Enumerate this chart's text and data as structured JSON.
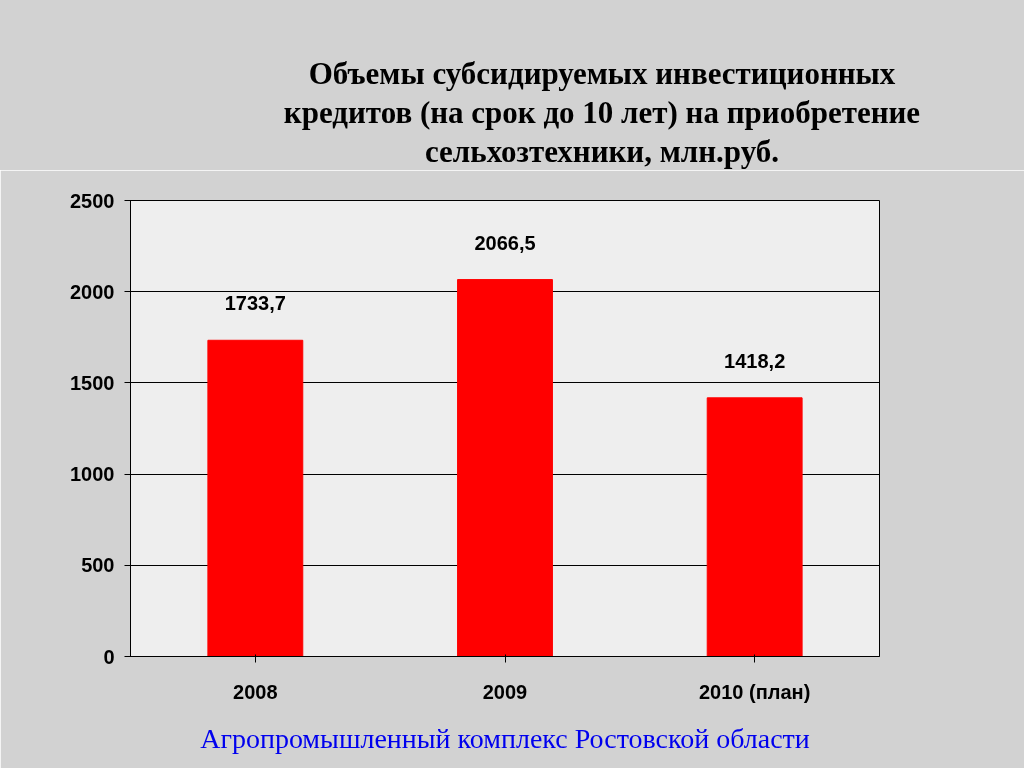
{
  "chart_data": {
    "type": "bar",
    "title": "Объемы субсидируемых инвестиционных\nкредитов (на срок до 10 лет) на приобретение\nсельхозтехники, млн.руб.",
    "categories": [
      "2008",
      "2009",
      "2010 (план)"
    ],
    "values": [
      1733.7,
      2066.5,
      1418.2
    ],
    "value_labels": [
      "1733,7",
      "2066,5",
      "1418,2"
    ],
    "color": "#ff0000",
    "ylim": [
      0,
      2500
    ],
    "yticks": [
      0,
      500,
      1000,
      1500,
      2000,
      2500
    ],
    "grid": "y",
    "annotations": [
      "Агропромышленный комплекс Ростовской области"
    ]
  }
}
